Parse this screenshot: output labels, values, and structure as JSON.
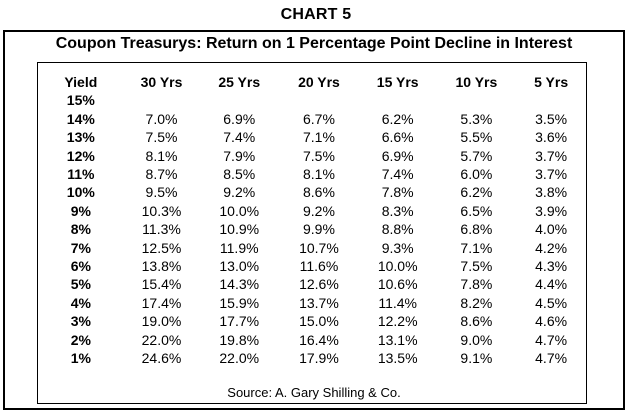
{
  "chart_label": "CHART 5",
  "chart_data": {
    "type": "table",
    "title": "Coupon Treasurys: Return on 1 Percentage Point Decline in Interest",
    "columns": [
      "Yield",
      "30 Yrs",
      "25 Yrs",
      "20 Yrs",
      "15 Yrs",
      "10 Yrs",
      "5 Yrs"
    ],
    "rows": [
      [
        "15%",
        "",
        "",
        "",
        "",
        "",
        ""
      ],
      [
        "14%",
        "7.0%",
        "6.9%",
        "6.7%",
        "6.2%",
        "5.3%",
        "3.5%"
      ],
      [
        "13%",
        "7.5%",
        "7.4%",
        "7.1%",
        "6.6%",
        "5.5%",
        "3.6%"
      ],
      [
        "12%",
        "8.1%",
        "7.9%",
        "7.5%",
        "6.9%",
        "5.7%",
        "3.7%"
      ],
      [
        "11%",
        "8.7%",
        "8.5%",
        "8.1%",
        "7.4%",
        "6.0%",
        "3.7%"
      ],
      [
        "10%",
        "9.5%",
        "9.2%",
        "8.6%",
        "7.8%",
        "6.2%",
        "3.8%"
      ],
      [
        "9%",
        "10.3%",
        "10.0%",
        "9.2%",
        "8.3%",
        "6.5%",
        "3.9%"
      ],
      [
        "8%",
        "11.3%",
        "10.9%",
        "9.9%",
        "8.8%",
        "6.8%",
        "4.0%"
      ],
      [
        "7%",
        "12.5%",
        "11.9%",
        "10.7%",
        "9.3%",
        "7.1%",
        "4.2%"
      ],
      [
        "6%",
        "13.8%",
        "13.0%",
        "11.6%",
        "10.0%",
        "7.5%",
        "4.3%"
      ],
      [
        "5%",
        "15.4%",
        "14.3%",
        "12.6%",
        "10.6%",
        "7.8%",
        "4.4%"
      ],
      [
        "4%",
        "17.4%",
        "15.9%",
        "13.7%",
        "11.4%",
        "8.2%",
        "4.5%"
      ],
      [
        "3%",
        "19.0%",
        "17.7%",
        "15.0%",
        "12.2%",
        "8.6%",
        "4.6%"
      ],
      [
        "2%",
        "22.0%",
        "19.8%",
        "16.4%",
        "13.1%",
        "9.0%",
        "4.7%"
      ],
      [
        "1%",
        "24.6%",
        "22.0%",
        "17.9%",
        "13.5%",
        "9.1%",
        "4.7%"
      ]
    ],
    "source": "Source: A. Gary Shilling & Co."
  }
}
